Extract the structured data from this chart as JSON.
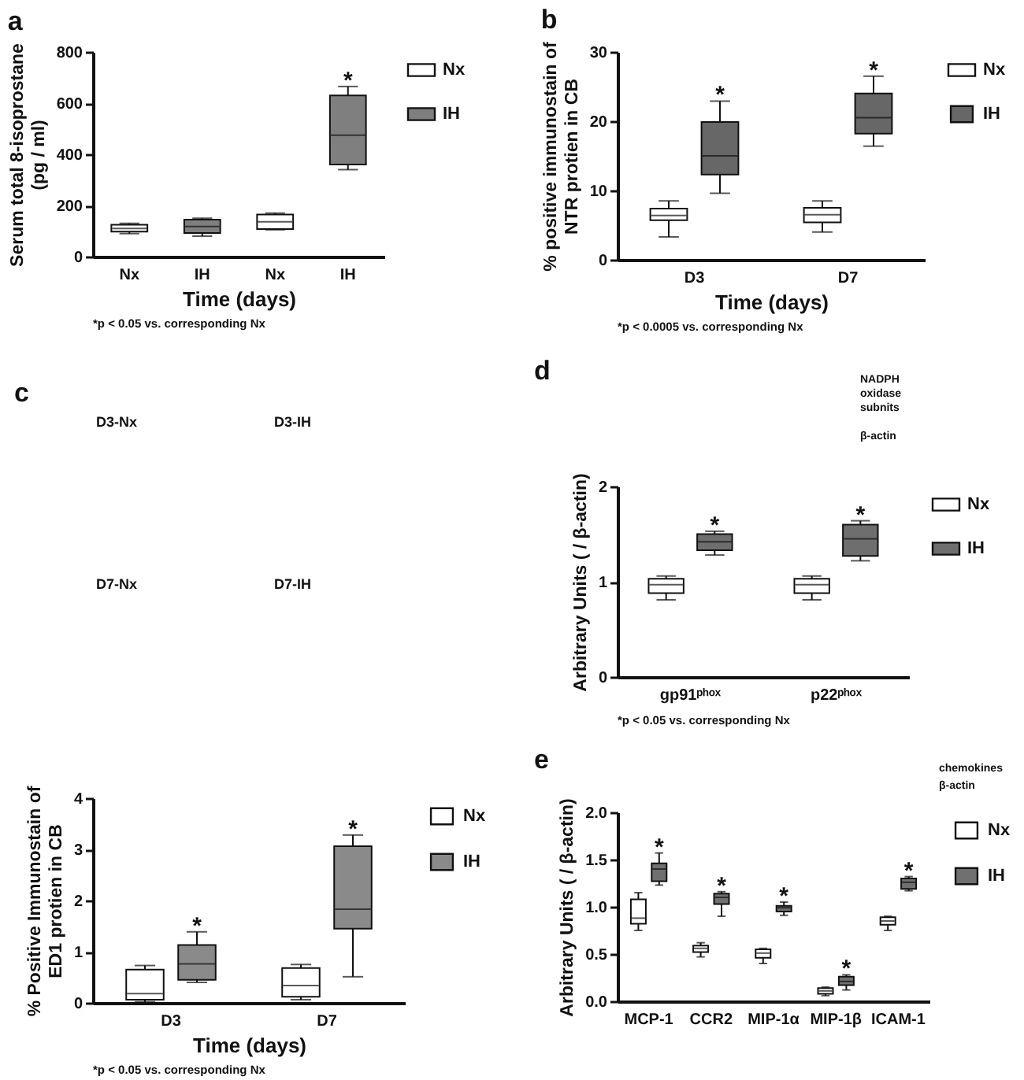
{
  "chart_data": [
    {
      "type": "box",
      "title": "a",
      "ylabel": "Serum total 8-isoprostane\n(pg / ml)",
      "xlabel": "Time (days)",
      "categories": [
        "Nx",
        "IH",
        "Nx",
        "IH"
      ],
      "series": [
        {
          "name": "Nx",
          "color": "#ffffff",
          "boxes": [
            {
              "low": 90,
              "q1": 98,
              "median": 110,
              "q3": 125,
              "high": 130
            },
            null,
            {
              "low": 105,
              "q1": 108,
              "median": 136,
              "q3": 165,
              "high": 170
            },
            null
          ]
        },
        {
          "name": "IH",
          "color": "#7f7f7f",
          "boxes": [
            null,
            {
              "low": 80,
              "q1": 92,
              "median": 118,
              "q3": 145,
              "high": 150
            },
            null,
            {
              "low": 340,
              "q1": 360,
              "median": 475,
              "q3": 630,
              "high": 665
            }
          ],
          "value_labels": [
            null,
            null,
            null,
            "*"
          ]
        }
      ],
      "ylim": [
        0,
        800
      ],
      "yticks": [
        0,
        200,
        400,
        600,
        800
      ],
      "legend": "top right",
      "annotations": [
        "*p < 0.05 vs. corresponding Nx"
      ]
    },
    {
      "type": "box",
      "title": "b",
      "ylabel": "% positive immunostain of\nNTR protien in CB",
      "xlabel": "Time (days)",
      "categories": [
        "D3",
        "D7"
      ],
      "series": [
        {
          "name": "Nx",
          "color": "#ffffff",
          "boxes": [
            {
              "low": 3.3,
              "q1": 5.7,
              "median": 6.4,
              "q3": 7.4,
              "high": 8.5
            },
            {
              "low": 4.0,
              "q1": 5.4,
              "median": 6.5,
              "q3": 7.5,
              "high": 8.5
            }
          ]
        },
        {
          "name": "IH",
          "color": "#676767",
          "boxes": [
            {
              "low": 9.6,
              "q1": 12.3,
              "median": 15.0,
              "q3": 19.9,
              "high": 22.9
            },
            {
              "low": 16.4,
              "q1": 18.2,
              "median": 20.5,
              "q3": 24.0,
              "high": 26.5
            }
          ],
          "value_labels": [
            "*",
            "*"
          ]
        }
      ],
      "ylim": [
        0,
        30
      ],
      "yticks": [
        0,
        10,
        20,
        30
      ],
      "legend": "top right",
      "annotations": [
        "*p < 0.0005 vs. corresponding Nx"
      ]
    },
    {
      "type": "other",
      "title": "c",
      "annotations": [
        "D3-Nx",
        "D3-IH",
        "D7-Nx",
        "D7-IH"
      ]
    },
    {
      "type": "other",
      "title": "d",
      "annotations": [
        "NADPH oxidase subnits",
        "β-actin"
      ]
    },
    {
      "type": "box",
      "ylabel": "Arbitrary Units ( / β-actin)",
      "categories": [
        "gp91ᵖʰᵒˣ",
        "p22ᵖʰᵒˣ"
      ],
      "series": [
        {
          "name": "Nx",
          "color": "#ffffff",
          "boxes": [
            {
              "low": 0.81,
              "q1": 0.88,
              "median": 0.97,
              "q3": 1.03,
              "high": 1.06
            },
            {
              "low": 0.81,
              "q1": 0.88,
              "median": 0.97,
              "q3": 1.03,
              "high": 1.06
            }
          ]
        },
        {
          "name": "IH",
          "color": "#6e6e6e",
          "boxes": [
            {
              "low": 1.28,
              "q1": 1.33,
              "median": 1.42,
              "q3": 1.5,
              "high": 1.53
            },
            {
              "low": 1.22,
              "q1": 1.27,
              "median": 1.45,
              "q3": 1.6,
              "high": 1.64
            }
          ],
          "value_labels": [
            "*",
            "*"
          ]
        }
      ],
      "ylim": [
        0,
        2
      ],
      "yticks": [
        0,
        1,
        2
      ],
      "legend": "top right",
      "annotations": [
        "*p < 0.05 vs. corresponding Nx"
      ]
    },
    {
      "type": "box",
      "ylabel": "% Positive Immunostain of\nED1 protien in CB",
      "xlabel": "Time (days)",
      "categories": [
        "D3",
        "D7"
      ],
      "series": [
        {
          "name": "Nx",
          "color": "#ffffff",
          "boxes": [
            {
              "low": 0.02,
              "q1": 0.06,
              "median": 0.18,
              "q3": 0.65,
              "high": 0.73
            },
            {
              "low": 0.06,
              "q1": 0.12,
              "median": 0.34,
              "q3": 0.68,
              "high": 0.75
            }
          ]
        },
        {
          "name": "IH",
          "color": "#8a8a8a",
          "boxes": [
            {
              "low": 0.4,
              "q1": 0.45,
              "median": 0.76,
              "q3": 1.13,
              "high": 1.39
            },
            {
              "low": 0.51,
              "q1": 1.45,
              "median": 1.83,
              "q3": 3.06,
              "high": 3.28
            }
          ],
          "value_labels": [
            "*",
            "*"
          ]
        }
      ],
      "ylim": [
        0,
        4
      ],
      "yticks": [
        0,
        1,
        2,
        3,
        4
      ],
      "legend": "top right",
      "annotations": [
        "*p < 0.05 vs. corresponding Nx"
      ]
    },
    {
      "type": "other",
      "title": "e",
      "annotations": [
        "chemokines",
        "β-actin"
      ]
    },
    {
      "type": "box",
      "ylabel": "Arbitrary Units ( / β-actin)",
      "categories": [
        "MCP-1",
        "CCR2",
        "MIP-1α",
        "MIP-1β",
        "ICAM-1"
      ],
      "series": [
        {
          "name": "Nx",
          "color": "#ffffff",
          "boxes": [
            {
              "low": 0.75,
              "q1": 0.82,
              "median": 0.88,
              "q3": 1.08,
              "high": 1.15
            },
            {
              "low": 0.47,
              "q1": 0.52,
              "median": 0.56,
              "q3": 0.59,
              "high": 0.62
            },
            {
              "low": 0.4,
              "q1": 0.46,
              "median": 0.51,
              "q3": 0.55,
              "high": 0.56
            },
            {
              "low": 0.06,
              "q1": 0.08,
              "median": 0.11,
              "q3": 0.14,
              "high": 0.15
            },
            {
              "low": 0.75,
              "q1": 0.81,
              "median": 0.85,
              "q3": 0.89,
              "high": 0.9
            }
          ]
        },
        {
          "name": "IH",
          "color": "#707070",
          "boxes": [
            {
              "low": 1.23,
              "q1": 1.27,
              "median": 1.4,
              "q3": 1.46,
              "high": 1.57
            },
            {
              "low": 0.9,
              "q1": 1.03,
              "median": 1.1,
              "q3": 1.14,
              "high": 1.16
            },
            {
              "low": 0.91,
              "q1": 0.95,
              "median": 0.99,
              "q3": 1.01,
              "high": 1.05
            },
            {
              "low": 0.12,
              "q1": 0.17,
              "median": 0.21,
              "q3": 0.26,
              "high": 0.28
            },
            {
              "low": 1.17,
              "q1": 1.19,
              "median": 1.26,
              "q3": 1.3,
              "high": 1.32
            }
          ],
          "value_labels": [
            "*",
            "*",
            "*",
            "*",
            "*"
          ]
        }
      ],
      "ylim": [
        0,
        2
      ],
      "yticks": [
        {
          "value": 0,
          "label": "0.0"
        },
        0.5,
        {
          "value": 1,
          "label": "1.0"
        },
        1.5,
        {
          "value": 2,
          "label": "2.0"
        }
      ],
      "legend": "top right"
    }
  ]
}
